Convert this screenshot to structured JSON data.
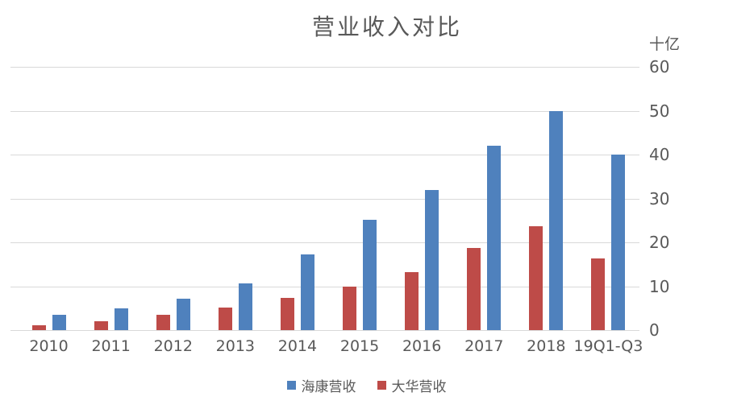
{
  "title": "营业收入对比",
  "chart_data": {
    "type": "bar",
    "title": "营业收入对比",
    "unit_label": "十亿",
    "categories": [
      "2010",
      "2011",
      "2012",
      "2013",
      "2014",
      "2015",
      "2016",
      "2017",
      "2018",
      "19Q1-Q3"
    ],
    "series": [
      {
        "name": "海康营收",
        "color": "#4F81BD",
        "values": [
          3.5,
          5.0,
          7.1,
          10.7,
          17.2,
          25.2,
          32.0,
          42.0,
          50.0,
          40.0
        ]
      },
      {
        "name": "大华营收",
        "color": "#BE4B48",
        "values": [
          1.1,
          2.0,
          3.5,
          5.2,
          7.3,
          10.0,
          13.3,
          18.7,
          23.6,
          16.3
        ]
      }
    ],
    "bar_order_left_to_right": [
      "大华营收",
      "海康营收"
    ],
    "ylim": [
      0,
      60
    ],
    "yticks": [
      0,
      10,
      20,
      30,
      40,
      50,
      60
    ],
    "grid": true,
    "legend_position": "bottom",
    "colors": {
      "gridline": "#D9D9D9",
      "axis_line": "#D9D9D9",
      "text": "#595959"
    }
  }
}
